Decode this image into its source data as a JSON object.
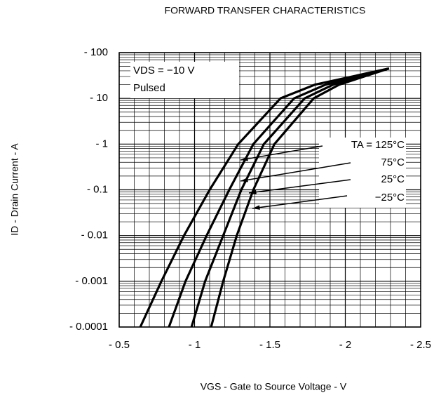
{
  "chart_data": {
    "type": "line",
    "title": "FORWARD TRANSFER CHARACTERISTICS",
    "x_label": "VGS - Gate to Source Voltage - V",
    "y_label": "ID - Drain Current - A",
    "annotations": [
      "VDS = −10 V",
      "Pulsed"
    ],
    "log_y": true,
    "grid": true,
    "minor_grid": true,
    "color": "#000000",
    "xlim": [
      -0.5,
      -2.5
    ],
    "ylim": [
      -0.0001,
      -100
    ],
    "xticks": [
      {
        "value": -0.5,
        "label": "- 0.5"
      },
      {
        "value": -1,
        "label": "- 1"
      },
      {
        "value": -1.5,
        "label": "- 1.5"
      },
      {
        "value": -2,
        "label": "- 2"
      },
      {
        "value": -2.5,
        "label": "- 2.5"
      }
    ],
    "yticks": [
      {
        "value": -0.0001,
        "label": "- 0.0001"
      },
      {
        "value": -0.001,
        "label": "- 0.001"
      },
      {
        "value": -0.01,
        "label": "- 0.01"
      },
      {
        "value": -0.1,
        "label": "- 0.1"
      },
      {
        "value": -1,
        "label": "- 1"
      },
      {
        "value": -10,
        "label": "- 10"
      },
      {
        "value": -100,
        "label": "- 100"
      }
    ],
    "series": [
      {
        "name": "TA = 125°C",
        "color": "#000000",
        "x": [
          -0.64,
          -0.78,
          -0.93,
          -1.1,
          -1.29,
          -1.57,
          -1.8,
          -2.29
        ],
        "values": [
          -0.0001,
          -0.001,
          -0.01,
          -0.1,
          -1,
          -10,
          -20,
          -45
        ]
      },
      {
        "name": "75°C",
        "color": "#000000",
        "x": [
          -0.83,
          -0.94,
          -1.08,
          -1.23,
          -1.39,
          -1.66,
          -1.87,
          -2.29
        ],
        "values": [
          -0.0001,
          -0.001,
          -0.01,
          -0.1,
          -1,
          -10,
          -20,
          -45
        ]
      },
      {
        "name": "25°C",
        "color": "#000000",
        "x": [
          -0.98,
          -1.07,
          -1.19,
          -1.31,
          -1.46,
          -1.73,
          -1.92,
          -2.29
        ],
        "values": [
          -0.0001,
          -0.001,
          -0.01,
          -0.1,
          -1,
          -10,
          -20,
          -45
        ]
      },
      {
        "name": "−25°C",
        "color": "#000000",
        "x": [
          -1.11,
          -1.19,
          -1.28,
          -1.39,
          -1.53,
          -1.79,
          -1.96,
          -2.29
        ],
        "values": [
          -0.0001,
          -0.001,
          -0.01,
          -0.1,
          -1,
          -10,
          -20,
          -45
        ]
      }
    ]
  }
}
